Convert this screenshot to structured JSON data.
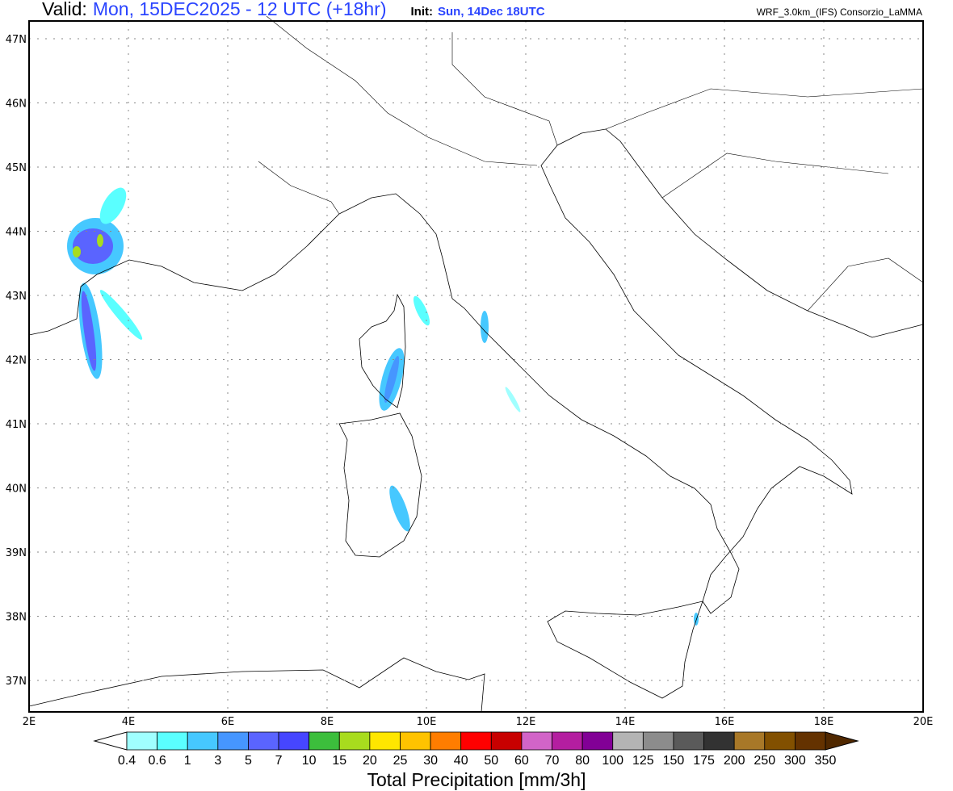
{
  "header": {
    "valid_label": "Valid:",
    "valid_value": "Mon, 15DEC2025 - 12 UTC (+18hr)",
    "init_label": "Init:",
    "init_value": "Sun, 14Dec 18UTC",
    "model": "WRF_3.0km_(IFS)  Consorzio_LaMMA"
  },
  "map": {
    "lat_labels": [
      "47N",
      "46N",
      "45N",
      "44N",
      "43N",
      "42N",
      "41N",
      "40N",
      "39N",
      "38N",
      "37N"
    ],
    "lat_values": [
      47,
      46,
      45,
      44,
      43,
      42,
      41,
      40,
      39,
      38,
      37
    ],
    "lon_labels": [
      "2E",
      "4E",
      "6E",
      "8E",
      "10E",
      "12E",
      "14E",
      "16E",
      "18E",
      "20E"
    ],
    "lon_values": [
      2,
      4,
      6,
      8,
      10,
      12,
      14,
      16,
      18,
      20
    ],
    "extent": {
      "lon": [
        2,
        20
      ],
      "lat": [
        36.5,
        47.5
      ]
    }
  },
  "colorbar": {
    "title": "Total Precipitation [mm/3h]",
    "levels": [
      "0.4",
      "0.6",
      "1",
      "3",
      "5",
      "7",
      "10",
      "15",
      "20",
      "25",
      "30",
      "40",
      "50",
      "60",
      "70",
      "80",
      "100",
      "125",
      "150",
      "175",
      "200",
      "250",
      "300",
      "350"
    ],
    "colors": [
      "#a0ffff",
      "#5affff",
      "#46c8ff",
      "#4696ff",
      "#5a64ff",
      "#4646ff",
      "#3cbe3c",
      "#a8dc1e",
      "#ffe600",
      "#ffc300",
      "#ff7d00",
      "#ff0000",
      "#c80000",
      "#d264c8",
      "#b41ea0",
      "#820096",
      "#b4b4b4",
      "#8c8c8c",
      "#5a5a5a",
      "#323232",
      "#a87828",
      "#825000",
      "#643200"
    ],
    "over_color": "#502800",
    "under_color": "#ffffff"
  }
}
